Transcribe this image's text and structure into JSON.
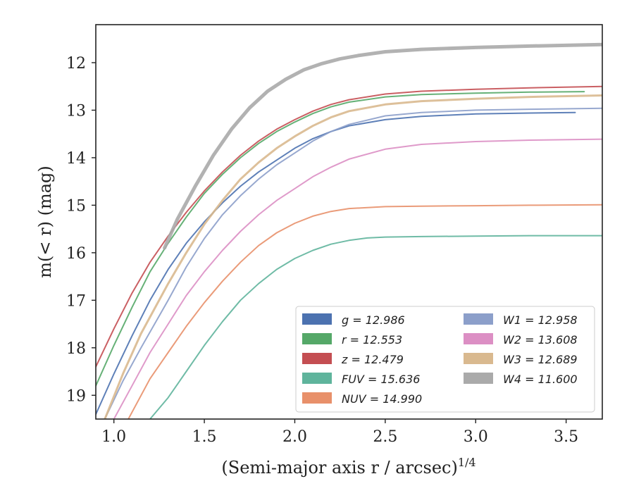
{
  "chart_data": {
    "type": "line",
    "title": "",
    "xlabel": "(Semi-major axis r / arcsec)",
    "xlabel_sup": "1/4",
    "ylabel": "m(< r) (mag)",
    "xlim": [
      0.9,
      3.7
    ],
    "ylim": [
      19.5,
      11.2
    ],
    "y_inverted": true,
    "grid": false,
    "legend_position": "lower-right",
    "legend_columns": 2,
    "x_ticks": [
      {
        "value": 1.0,
        "label": "1.0"
      },
      {
        "value": 1.5,
        "label": "1.5"
      },
      {
        "value": 2.0,
        "label": "2.0"
      },
      {
        "value": 2.5,
        "label": "2.5"
      },
      {
        "value": 3.0,
        "label": "3.0"
      },
      {
        "value": 3.5,
        "label": "3.5"
      }
    ],
    "y_ticks": [
      {
        "value": 12,
        "label": "12"
      },
      {
        "value": 13,
        "label": "13"
      },
      {
        "value": 14,
        "label": "14"
      },
      {
        "value": 15,
        "label": "15"
      },
      {
        "value": 16,
        "label": "16"
      },
      {
        "value": 17,
        "label": "17"
      },
      {
        "value": 18,
        "label": "18"
      },
      {
        "value": 19,
        "label": "19"
      }
    ],
    "series": [
      {
        "name": "g = 12.986",
        "band": "g",
        "mag": "12.986",
        "color": "#4c72b0",
        "x": [
          0.9,
          1.0,
          1.1,
          1.2,
          1.3,
          1.4,
          1.5,
          1.6,
          1.7,
          1.8,
          1.9,
          2.0,
          2.1,
          2.2,
          2.3,
          2.5,
          2.7,
          3.0,
          3.3,
          3.55
        ],
        "y": [
          19.4,
          18.55,
          17.75,
          17.0,
          16.35,
          15.8,
          15.35,
          14.95,
          14.6,
          14.3,
          14.05,
          13.8,
          13.6,
          13.45,
          13.33,
          13.2,
          13.13,
          13.08,
          13.06,
          13.05
        ]
      },
      {
        "name": "r = 12.553",
        "band": "r",
        "mag": "12.553",
        "color": "#55a868",
        "x": [
          0.9,
          1.0,
          1.1,
          1.2,
          1.3,
          1.4,
          1.5,
          1.6,
          1.7,
          1.8,
          1.9,
          2.0,
          2.1,
          2.2,
          2.3,
          2.5,
          2.7,
          3.0,
          3.3,
          3.6
        ],
        "y": [
          18.8,
          17.95,
          17.15,
          16.4,
          15.8,
          15.25,
          14.75,
          14.35,
          14.0,
          13.7,
          13.45,
          13.25,
          13.07,
          12.93,
          12.83,
          12.72,
          12.67,
          12.64,
          12.62,
          12.61
        ]
      },
      {
        "name": "z = 12.479",
        "band": "z",
        "mag": "12.479",
        "color": "#c44e52",
        "x": [
          0.9,
          1.0,
          1.1,
          1.2,
          1.3,
          1.4,
          1.5,
          1.6,
          1.7,
          1.8,
          1.9,
          2.0,
          2.1,
          2.2,
          2.3,
          2.5,
          2.7,
          3.0,
          3.3,
          3.7
        ],
        "y": [
          18.4,
          17.6,
          16.85,
          16.2,
          15.65,
          15.15,
          14.7,
          14.3,
          13.95,
          13.65,
          13.4,
          13.2,
          13.02,
          12.88,
          12.78,
          12.66,
          12.6,
          12.56,
          12.53,
          12.5
        ]
      },
      {
        "name": "FUV = 15.636",
        "band": "FUV",
        "mag": "15.636",
        "color": "#5fb49c",
        "x": [
          1.2,
          1.3,
          1.4,
          1.5,
          1.6,
          1.7,
          1.8,
          1.9,
          2.0,
          2.1,
          2.2,
          2.3,
          2.4,
          2.5,
          2.7,
          3.0,
          3.3,
          3.7
        ],
        "y": [
          19.5,
          19.05,
          18.5,
          17.95,
          17.45,
          17.0,
          16.65,
          16.35,
          16.12,
          15.95,
          15.82,
          15.74,
          15.69,
          15.67,
          15.66,
          15.65,
          15.64,
          15.64
        ]
      },
      {
        "name": "NUV = 14.990",
        "band": "NUV",
        "mag": "14.990",
        "color": "#e8906a",
        "x": [
          1.08,
          1.2,
          1.3,
          1.4,
          1.5,
          1.6,
          1.7,
          1.8,
          1.9,
          2.0,
          2.1,
          2.2,
          2.3,
          2.5,
          2.7,
          3.0,
          3.3,
          3.7
        ],
        "y": [
          19.5,
          18.65,
          18.1,
          17.55,
          17.05,
          16.6,
          16.2,
          15.85,
          15.58,
          15.38,
          15.23,
          15.13,
          15.07,
          15.03,
          15.02,
          15.01,
          15.0,
          14.99
        ]
      },
      {
        "name": "W1 = 12.958",
        "band": "W1",
        "mag": "12.958",
        "color": "#8c9fca",
        "x": [
          0.95,
          1.05,
          1.15,
          1.3,
          1.4,
          1.5,
          1.6,
          1.7,
          1.8,
          1.9,
          2.0,
          2.1,
          2.2,
          2.3,
          2.5,
          2.7,
          3.0,
          3.3,
          3.7
        ],
        "y": [
          19.5,
          18.7,
          18.0,
          17.0,
          16.3,
          15.7,
          15.2,
          14.8,
          14.45,
          14.15,
          13.9,
          13.65,
          13.45,
          13.3,
          13.12,
          13.05,
          13.0,
          12.98,
          12.96
        ]
      },
      {
        "name": "W2 = 13.608",
        "band": "W2",
        "mag": "13.608",
        "color": "#dc8fc4",
        "x": [
          1.0,
          1.1,
          1.2,
          1.3,
          1.4,
          1.5,
          1.6,
          1.7,
          1.8,
          1.9,
          2.0,
          2.1,
          2.2,
          2.3,
          2.5,
          2.7,
          3.0,
          3.3,
          3.7
        ],
        "y": [
          19.5,
          18.8,
          18.1,
          17.5,
          16.9,
          16.4,
          15.95,
          15.55,
          15.2,
          14.9,
          14.65,
          14.4,
          14.2,
          14.03,
          13.82,
          13.72,
          13.66,
          13.63,
          13.61
        ]
      },
      {
        "name": "W3 = 12.689",
        "band": "W3",
        "mag": "12.689",
        "color": "#d9b98f",
        "x": [
          0.95,
          1.05,
          1.15,
          1.3,
          1.4,
          1.5,
          1.6,
          1.7,
          1.8,
          1.9,
          2.0,
          2.1,
          2.2,
          2.3,
          2.5,
          2.7,
          3.0,
          3.3,
          3.7
        ],
        "y": [
          19.5,
          18.55,
          17.7,
          16.65,
          16.0,
          15.4,
          14.9,
          14.45,
          14.1,
          13.8,
          13.55,
          13.33,
          13.15,
          13.02,
          12.88,
          12.81,
          12.76,
          12.72,
          12.69
        ]
      },
      {
        "name": "W4 = 11.600",
        "band": "W4",
        "mag": "11.600",
        "color": "#aaaaaa",
        "x": [
          1.28,
          1.35,
          1.45,
          1.55,
          1.65,
          1.75,
          1.85,
          1.95,
          2.05,
          2.15,
          2.25,
          2.35,
          2.5,
          2.7,
          3.0,
          3.3,
          3.7
        ],
        "y": [
          15.9,
          15.3,
          14.6,
          13.95,
          13.4,
          12.95,
          12.6,
          12.35,
          12.15,
          12.02,
          11.92,
          11.85,
          11.77,
          11.72,
          11.68,
          11.65,
          11.62
        ]
      }
    ]
  }
}
